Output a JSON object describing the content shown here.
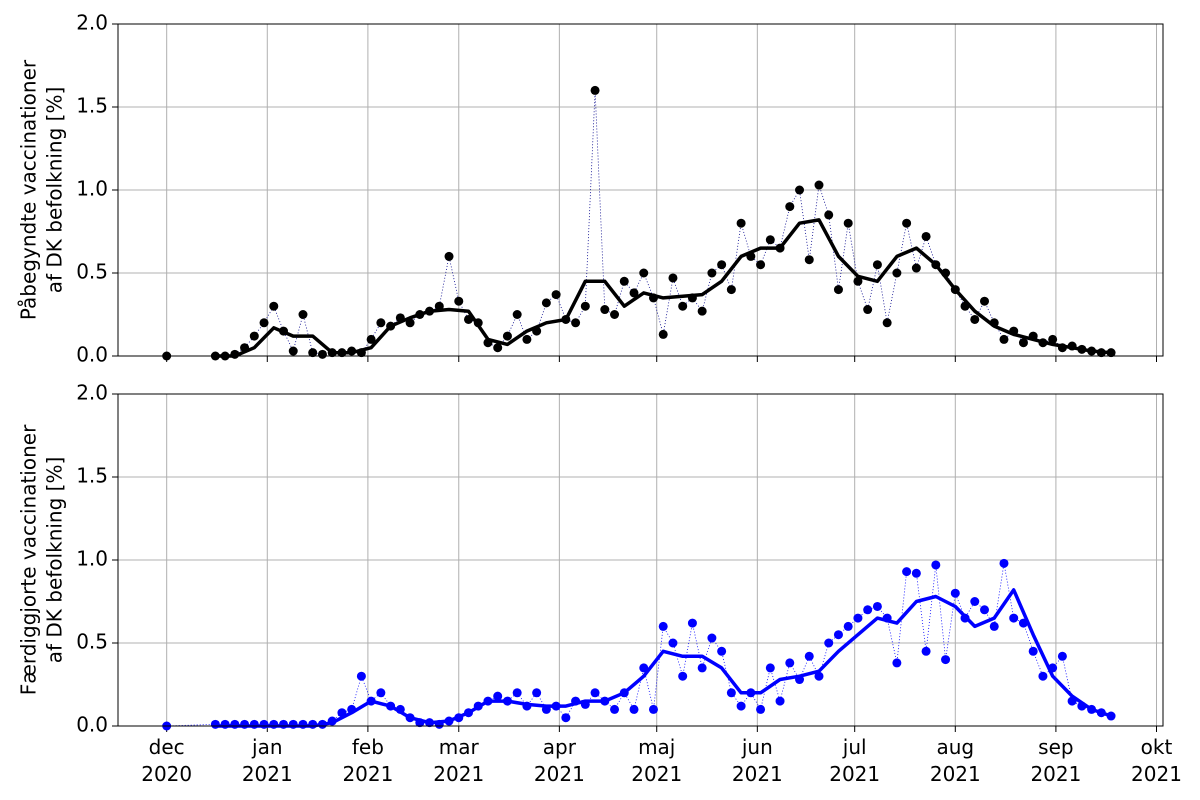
{
  "chart_data": [
    {
      "type": "line",
      "ylabel": [
        "Påbegyndte vaccinationer",
        "af DK befolkning [%]"
      ],
      "xlim": [
        -15,
        307
      ],
      "ylim": [
        0,
        2.0
      ],
      "xticks": [
        0,
        31,
        62,
        90,
        121,
        151,
        182,
        212,
        243,
        274,
        305
      ],
      "yticks": [
        {
          "value": 0,
          "label": "0.0"
        },
        {
          "value": 0.5,
          "label": "0.5"
        },
        {
          "value": 1,
          "label": "1.0"
        },
        {
          "value": 1.5,
          "label": "1.5"
        },
        {
          "value": 2,
          "label": "2.0"
        }
      ],
      "grid": true,
      "series": [
        {
          "kind": "scatter",
          "color": "#000000",
          "line_color": "#00008b",
          "x": [
            0,
            15,
            18,
            21,
            24,
            27,
            30,
            33,
            36,
            39,
            42,
            45,
            48,
            51,
            54,
            57,
            60,
            63,
            66,
            69,
            72,
            75,
            78,
            81,
            84,
            87,
            90,
            93,
            96,
            99,
            102,
            105,
            108,
            111,
            114,
            117,
            120,
            123,
            126,
            129,
            132,
            135,
            138,
            141,
            144,
            147,
            150,
            153,
            156,
            159,
            162,
            165,
            168,
            171,
            174,
            177,
            180,
            183,
            186,
            189,
            192,
            195,
            198,
            201,
            204,
            207,
            210,
            213,
            216,
            219,
            222,
            225,
            228,
            231,
            234,
            237,
            240,
            243,
            246,
            249,
            252,
            255,
            258,
            261,
            264,
            267,
            270,
            273,
            276,
            279,
            282,
            285,
            288,
            291
          ],
          "values": [
            0,
            0,
            0,
            0.01,
            0.05,
            0.12,
            0.2,
            0.3,
            0.15,
            0.03,
            0.25,
            0.02,
            0.01,
            0.02,
            0.02,
            0.03,
            0.02,
            0.1,
            0.2,
            0.18,
            0.23,
            0.2,
            0.25,
            0.27,
            0.3,
            0.6,
            0.33,
            0.22,
            0.2,
            0.08,
            0.05,
            0.12,
            0.25,
            0.1,
            0.15,
            0.32,
            0.37,
            0.22,
            0.2,
            0.3,
            1.6,
            0.28,
            0.25,
            0.45,
            0.38,
            0.5,
            0.35,
            0.13,
            0.47,
            0.3,
            0.35,
            0.27,
            0.5,
            0.55,
            0.4,
            0.8,
            0.6,
            0.55,
            0.7,
            0.65,
            0.9,
            1.0,
            0.58,
            1.03,
            0.85,
            0.4,
            0.8,
            0.45,
            0.28,
            0.55,
            0.2,
            0.5,
            0.8,
            0.53,
            0.72,
            0.55,
            0.5,
            0.4,
            0.3,
            0.22,
            0.33,
            0.2,
            0.1,
            0.15,
            0.08,
            0.12,
            0.08,
            0.1,
            0.05,
            0.06,
            0.04,
            0.03,
            0.02,
            0.02
          ]
        },
        {
          "kind": "line",
          "color": "#000000",
          "x": [
            15,
            21,
            27,
            33,
            39,
            45,
            51,
            57,
            63,
            69,
            75,
            81,
            87,
            93,
            99,
            105,
            111,
            117,
            123,
            129,
            135,
            141,
            147,
            153,
            159,
            165,
            171,
            177,
            183,
            189,
            195,
            201,
            207,
            213,
            219,
            225,
            231,
            237,
            243,
            249,
            255,
            261,
            267,
            273,
            279,
            285,
            291
          ],
          "values": [
            0,
            0,
            0.05,
            0.17,
            0.12,
            0.12,
            0.02,
            0.02,
            0.05,
            0.18,
            0.23,
            0.27,
            0.28,
            0.27,
            0.1,
            0.07,
            0.15,
            0.2,
            0.22,
            0.45,
            0.45,
            0.3,
            0.38,
            0.35,
            0.36,
            0.37,
            0.45,
            0.6,
            0.65,
            0.65,
            0.8,
            0.82,
            0.6,
            0.48,
            0.45,
            0.6,
            0.65,
            0.55,
            0.4,
            0.27,
            0.18,
            0.13,
            0.1,
            0.07,
            0.05,
            0.03,
            0.02
          ]
        }
      ]
    },
    {
      "type": "line",
      "ylabel": [
        "Færdiggjorte vaccinationer",
        "af DK befolkning [%]"
      ],
      "xlim": [
        -15,
        307
      ],
      "ylim": [
        0,
        2.0
      ],
      "xticks": [
        {
          "value": 0,
          "label": "dec 2020"
        },
        {
          "value": 31,
          "label": "jan 2021"
        },
        {
          "value": 62,
          "label": "feb 2021"
        },
        {
          "value": 90,
          "label": "mar 2021"
        },
        {
          "value": 121,
          "label": "apr 2021"
        },
        {
          "value": 151,
          "label": "maj 2021"
        },
        {
          "value": 182,
          "label": "jun 2021"
        },
        {
          "value": 212,
          "label": "jul 2021"
        },
        {
          "value": 243,
          "label": "aug 2021"
        },
        {
          "value": 274,
          "label": "sep 2021"
        },
        {
          "value": 305,
          "label": "okt 2021"
        }
      ],
      "yticks": [
        {
          "value": 0,
          "label": "0.0"
        },
        {
          "value": 0.5,
          "label": "0.5"
        },
        {
          "value": 1,
          "label": "1.0"
        },
        {
          "value": 1.5,
          "label": "1.5"
        },
        {
          "value": 2,
          "label": "2.0"
        }
      ],
      "grid": true,
      "series": [
        {
          "kind": "scatter",
          "color": "#0000ff",
          "line_color": "#0000ff",
          "x": [
            0,
            15,
            18,
            21,
            24,
            27,
            30,
            33,
            36,
            39,
            42,
            45,
            48,
            51,
            54,
            57,
            60,
            63,
            66,
            69,
            72,
            75,
            78,
            81,
            84,
            87,
            90,
            93,
            96,
            99,
            102,
            105,
            108,
            111,
            114,
            117,
            120,
            123,
            126,
            129,
            132,
            135,
            138,
            141,
            144,
            147,
            150,
            153,
            156,
            159,
            162,
            165,
            168,
            171,
            174,
            177,
            180,
            183,
            186,
            189,
            192,
            195,
            198,
            201,
            204,
            207,
            210,
            213,
            216,
            219,
            222,
            225,
            228,
            231,
            234,
            237,
            240,
            243,
            246,
            249,
            252,
            255,
            258,
            261,
            264,
            267,
            270,
            273,
            276,
            279,
            282,
            285,
            288,
            291
          ],
          "values": [
            0,
            0.01,
            0.01,
            0.01,
            0.01,
            0.01,
            0.01,
            0.01,
            0.01,
            0.01,
            0.01,
            0.01,
            0.01,
            0.03,
            0.08,
            0.1,
            0.3,
            0.15,
            0.2,
            0.12,
            0.1,
            0.05,
            0.02,
            0.02,
            0.01,
            0.03,
            0.05,
            0.08,
            0.12,
            0.15,
            0.18,
            0.15,
            0.2,
            0.12,
            0.2,
            0.1,
            0.12,
            0.05,
            0.15,
            0.13,
            0.2,
            0.15,
            0.1,
            0.2,
            0.1,
            0.35,
            0.1,
            0.6,
            0.5,
            0.3,
            0.62,
            0.35,
            0.53,
            0.45,
            0.2,
            0.12,
            0.2,
            0.1,
            0.35,
            0.15,
            0.38,
            0.28,
            0.42,
            0.3,
            0.5,
            0.55,
            0.6,
            0.65,
            0.7,
            0.72,
            0.65,
            0.38,
            0.93,
            0.92,
            0.45,
            0.97,
            0.4,
            0.8,
            0.65,
            0.75,
            0.7,
            0.6,
            0.98,
            0.65,
            0.62,
            0.45,
            0.3,
            0.35,
            0.42,
            0.15,
            0.12,
            0.1,
            0.08,
            0.06
          ]
        },
        {
          "kind": "line",
          "color": "#0000ff",
          "x": [
            15,
            21,
            27,
            33,
            39,
            45,
            51,
            57,
            63,
            69,
            75,
            81,
            87,
            93,
            99,
            105,
            111,
            117,
            123,
            129,
            135,
            141,
            147,
            153,
            159,
            165,
            171,
            177,
            183,
            189,
            195,
            201,
            207,
            213,
            219,
            225,
            231,
            237,
            243,
            249,
            255,
            261,
            267,
            273,
            279,
            285,
            291
          ],
          "values": [
            0,
            0,
            0,
            0,
            0,
            0,
            0.02,
            0.08,
            0.15,
            0.12,
            0.05,
            0.02,
            0.03,
            0.08,
            0.15,
            0.15,
            0.13,
            0.12,
            0.12,
            0.15,
            0.15,
            0.2,
            0.3,
            0.45,
            0.42,
            0.42,
            0.35,
            0.2,
            0.2,
            0.28,
            0.3,
            0.33,
            0.45,
            0.55,
            0.65,
            0.62,
            0.75,
            0.78,
            0.72,
            0.6,
            0.65,
            0.82,
            0.55,
            0.3,
            0.18,
            0.1,
            0.06
          ]
        }
      ]
    }
  ]
}
